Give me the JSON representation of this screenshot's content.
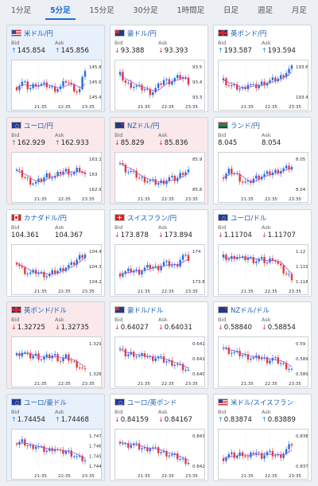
{
  "tabs": [
    "1分足",
    "5分足",
    "15分足",
    "30分足",
    "1時間足",
    "日足",
    "週足",
    "月足"
  ],
  "active_tab": 1,
  "colors": {
    "up_candle": "#1e6fe0",
    "down_candle": "#e03a3a",
    "ma": "#b050d0"
  },
  "cards": [
    {
      "title": "米ドル/円",
      "bg": "blue",
      "flag": "us",
      "bid": "145.854",
      "ask": "145.856",
      "dir": "up",
      "ticks": [
        "145.8",
        "145.6",
        "145.4"
      ],
      "times": [
        "21:35",
        "22:35",
        "23:35"
      ],
      "trend": [
        0.35,
        0.5,
        0.3,
        0.45,
        0.42,
        0.4,
        0.3,
        0.35,
        0.55,
        0.35,
        0.2,
        0.85
      ]
    },
    {
      "title": "豪ドル/円",
      "bg": "white",
      "flag": "au",
      "bid": "93.388",
      "ask": "93.393",
      "dir": "down",
      "ticks": [
        "93.5",
        "93.4",
        "93.3"
      ],
      "times": [
        "21:35",
        "22:35",
        "23:35"
      ],
      "trend": [
        0.7,
        0.45,
        0.4,
        0.35,
        0.3,
        0.2,
        0.35,
        0.55,
        0.5,
        0.6,
        0.65,
        0.5
      ]
    },
    {
      "title": "英ポンド/円",
      "bg": "white",
      "flag": "gb",
      "bid": "193.587",
      "ask": "193.594",
      "dir": "up",
      "ticks": [
        "193.6",
        "193.4"
      ],
      "times": [
        "21:35",
        "22:35",
        "23:35"
      ],
      "trend": [
        0.55,
        0.4,
        0.35,
        0.3,
        0.45,
        0.35,
        0.45,
        0.5,
        0.55,
        0.6,
        0.75,
        0.9
      ]
    },
    {
      "title": "ユーロ/円",
      "bg": "pink",
      "flag": "eu",
      "bid": "162.929",
      "ask": "162.933",
      "dir": "up",
      "ticks": [
        "163.1",
        "163",
        "162.9"
      ],
      "times": [
        "21:35",
        "22:35",
        "23:35"
      ],
      "trend": [
        0.6,
        0.45,
        0.3,
        0.25,
        0.35,
        0.5,
        0.4,
        0.55,
        0.6,
        0.5,
        0.65,
        0.45
      ]
    },
    {
      "title": "NZドル/円",
      "bg": "pink",
      "flag": "nz",
      "bid": "85.829",
      "ask": "85.836",
      "dir": "down",
      "ticks": [
        "85.9",
        "85.8"
      ],
      "times": [
        "21:35",
        "22:35",
        "23:35"
      ],
      "trend": [
        0.8,
        0.6,
        0.55,
        0.4,
        0.35,
        0.3,
        0.25,
        0.3,
        0.4,
        0.35,
        0.55,
        0.6
      ]
    },
    {
      "title": "ランド/円",
      "bg": "white",
      "flag": "za",
      "bid": "8.045",
      "ask": "8.054",
      "dir": "none",
      "ticks": [
        "8.05",
        "8.04"
      ],
      "times": [
        "21:35",
        "22:35",
        "23:35"
      ],
      "trend": [
        0.4,
        0.6,
        0.5,
        0.3,
        0.25,
        0.4,
        0.45,
        0.5,
        0.55,
        0.6,
        0.65,
        0.7
      ]
    },
    {
      "title": "カナダドル/円",
      "bg": "white",
      "flag": "ca",
      "bid": "104.361",
      "ask": "104.367",
      "dir": "none",
      "ticks": [
        "104.4",
        "104.3",
        "104.2"
      ],
      "times": [
        "21:35",
        "22:35",
        "23:35"
      ],
      "trend": [
        0.6,
        0.4,
        0.3,
        0.35,
        0.3,
        0.25,
        0.35,
        0.4,
        0.5,
        0.55,
        0.75,
        0.85
      ]
    },
    {
      "title": "スイスフラン/円",
      "bg": "white",
      "flag": "ch",
      "bid": "173.878",
      "ask": "173.894",
      "dir": "down",
      "ticks": [
        "174",
        "173.8"
      ],
      "times": [
        "21:35",
        "22:35",
        "23:35"
      ],
      "trend": [
        0.3,
        0.35,
        0.4,
        0.35,
        0.45,
        0.5,
        0.45,
        0.6,
        0.55,
        0.5,
        0.8,
        0.7
      ]
    },
    {
      "title": "ユーロ/ドル",
      "bg": "white",
      "flag": "eu",
      "bid": "1.11704",
      "ask": "1.11707",
      "dir": "down",
      "ticks": [
        "1.12",
        "1.119",
        "1.118"
      ],
      "times": [
        "21:35",
        "22:35",
        "23:35"
      ],
      "trend": [
        0.75,
        0.7,
        0.8,
        0.7,
        0.75,
        0.65,
        0.7,
        0.6,
        0.75,
        0.5,
        0.3,
        0.2
      ]
    },
    {
      "title": "英ポンド/ドル",
      "bg": "pink",
      "flag": "gb",
      "bid": "1.32725",
      "ask": "1.32735",
      "dir": "down",
      "ticks": [
        "1.329",
        "1.328"
      ],
      "times": [
        "21:35",
        "22:35",
        "23:35"
      ],
      "trend": [
        0.6,
        0.7,
        0.55,
        0.6,
        0.5,
        0.55,
        0.6,
        0.45,
        0.55,
        0.4,
        0.3,
        0.15
      ]
    },
    {
      "title": "豪ドル/ドル",
      "bg": "white",
      "flag": "au",
      "bid": "0.64027",
      "ask": "0.64031",
      "dir": "down",
      "ticks": [
        "0.6415",
        "0.641",
        "0.6405"
      ],
      "times": [
        "21:35",
        "22:35",
        "23:35"
      ],
      "trend": [
        0.75,
        0.6,
        0.65,
        0.55,
        0.6,
        0.5,
        0.55,
        0.45,
        0.4,
        0.35,
        0.25,
        0.15
      ]
    },
    {
      "title": "NZドル/ドル",
      "bg": "white",
      "flag": "nz",
      "bid": "0.58840",
      "ask": "0.58854",
      "dir": "down",
      "ticks": [
        "0.59",
        "0.5895",
        "0.589"
      ],
      "times": [
        "21:35",
        "22:35",
        "23:35"
      ],
      "trend": [
        0.8,
        0.7,
        0.65,
        0.6,
        0.55,
        0.5,
        0.55,
        0.45,
        0.5,
        0.4,
        0.3,
        0.2
      ]
    },
    {
      "title": "ユーロ/豪ドル",
      "bg": "blue",
      "flag": "eu",
      "bid": "1.74454",
      "ask": "1.74468",
      "dir": "up",
      "ticks": [
        "1.747",
        "1.746",
        "1.745",
        "1.744"
      ],
      "times": [
        "21:35",
        "22:35",
        "23:35"
      ],
      "trend": [
        0.7,
        0.75,
        0.6,
        0.65,
        0.55,
        0.5,
        0.6,
        0.45,
        0.5,
        0.4,
        0.3,
        0.25
      ]
    },
    {
      "title": "ユーロ/英ポンド",
      "bg": "white",
      "flag": "eu",
      "bid": "0.84159",
      "ask": "0.84167",
      "dir": "down",
      "ticks": [
        "0.843",
        "0.842"
      ],
      "times": [
        "21:35",
        "22:35",
        "23:35"
      ],
      "trend": [
        0.75,
        0.65,
        0.7,
        0.6,
        0.55,
        0.6,
        0.5,
        0.45,
        0.4,
        0.35,
        0.25,
        0.2
      ]
    },
    {
      "title": "米ドル/スイスフラン",
      "bg": "white",
      "flag": "us",
      "bid": "0.83874",
      "ask": "0.83889",
      "dir": "up",
      "ticks": [
        "0.838",
        "0.837"
      ],
      "times": [
        "21:35",
        "22:35",
        "23:35"
      ],
      "trend": [
        0.3,
        0.4,
        0.35,
        0.45,
        0.3,
        0.5,
        0.35,
        0.45,
        0.4,
        0.35,
        0.5,
        0.7
      ]
    }
  ],
  "labels": {
    "bid": "Bid",
    "ask": "Ask"
  }
}
